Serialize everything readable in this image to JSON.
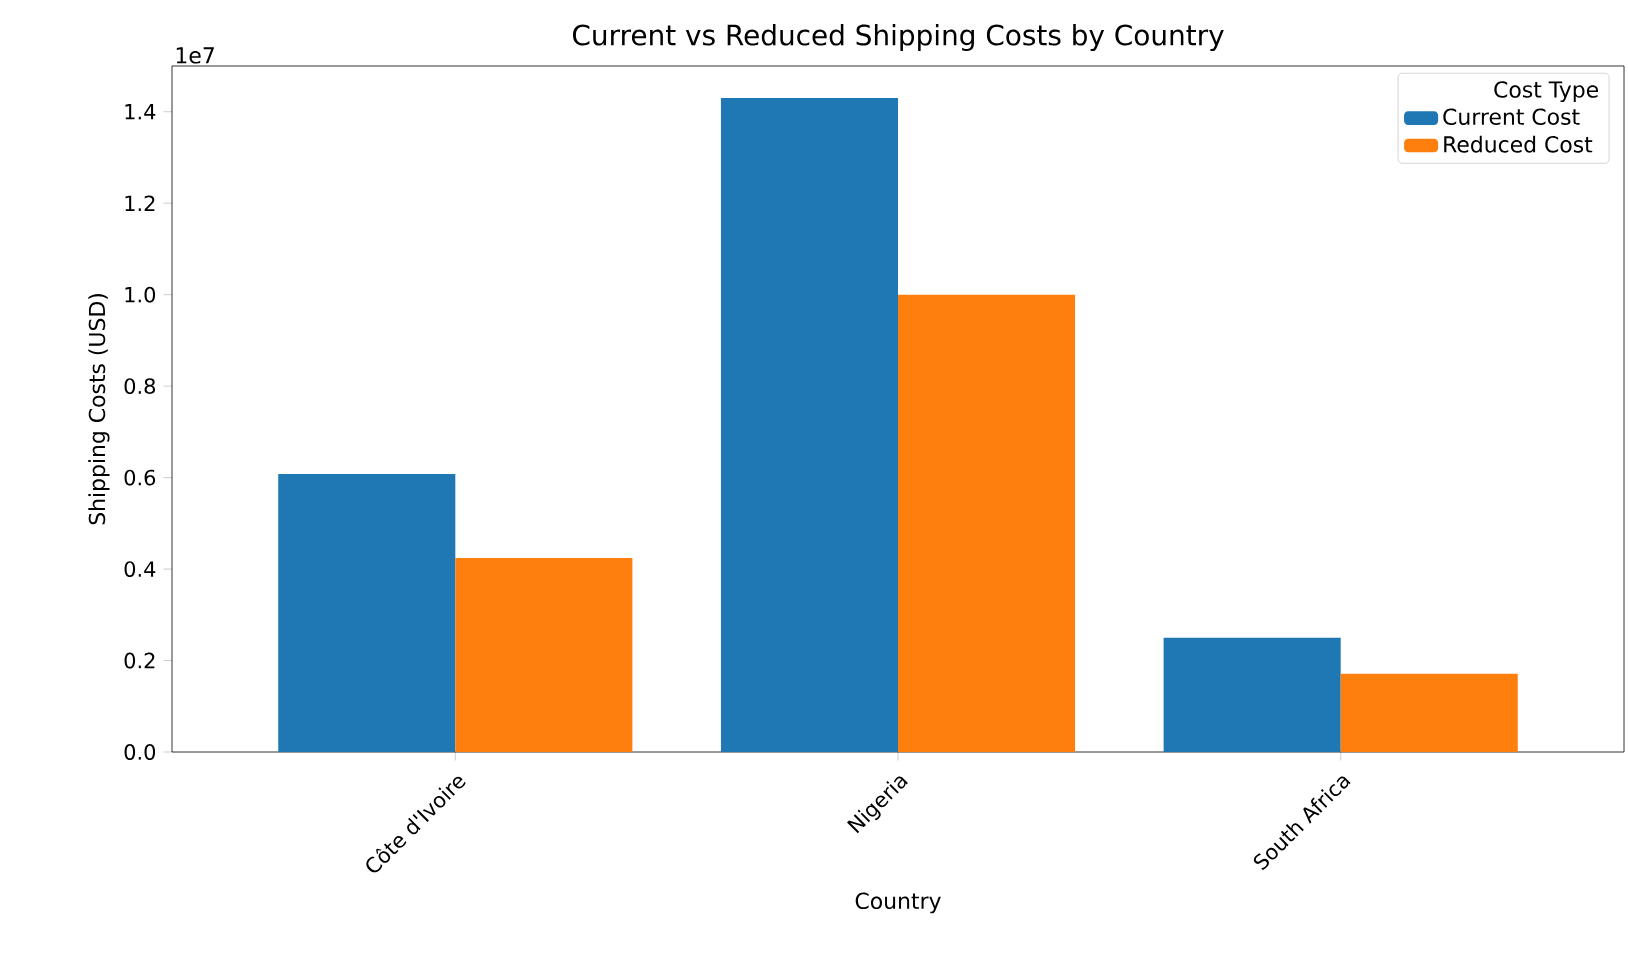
{
  "chart_data": {
    "type": "bar",
    "title": "Current vs Reduced Shipping Costs by Country",
    "xlabel": "Country",
    "ylabel": "Shipping Costs (USD)",
    "legend_title": "Cost Type",
    "categories": [
      "Côte d'Ivoire",
      "Nigeria",
      "South Africa"
    ],
    "series": [
      {
        "name": "Current Cost",
        "color": "#1f77b4",
        "values": [
          0.608,
          1.43,
          0.25
        ]
      },
      {
        "name": "Reduced Cost",
        "color": "#ff7f0e",
        "values": [
          0.424,
          1.0,
          0.171
        ]
      }
    ],
    "ylim": [
      0,
      1.5
    ],
    "yticks": [
      {
        "value": 0,
        "label": "0.0"
      },
      0.2,
      0.4,
      0.6,
      0.8,
      {
        "value": 1,
        "label": "1.0"
      },
      1.2,
      1.4
    ],
    "annotations": [
      "1e7"
    ],
    "legend": "top right",
    "grid": false
  }
}
